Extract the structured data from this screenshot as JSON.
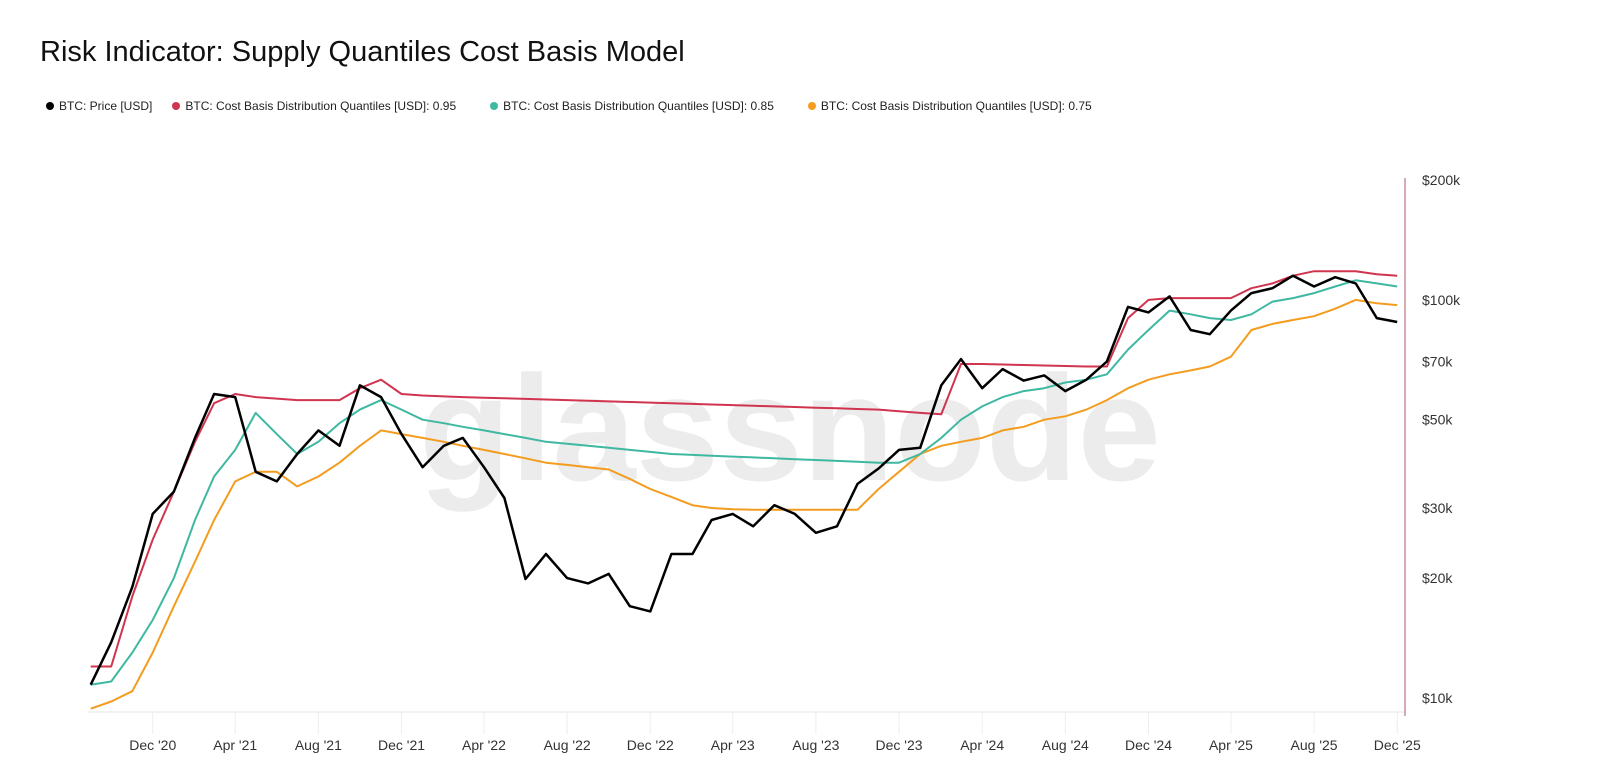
{
  "chart_data": {
    "type": "line",
    "title": "Risk Indicator: Supply Quantiles Cost Basis Model",
    "watermark": "glassnode",
    "y_scale": "log",
    "ylim": [
      10000,
      200000
    ],
    "y_ticks": [
      {
        "value": 200000,
        "label": "$200k"
      },
      {
        "value": 100000,
        "label": "$100k"
      },
      {
        "value": 70000,
        "label": "$70k"
      },
      {
        "value": 50000,
        "label": "$50k"
      },
      {
        "value": 30000,
        "label": "$30k"
      },
      {
        "value": 20000,
        "label": "$20k"
      },
      {
        "value": 10000,
        "label": "$10k"
      }
    ],
    "x_ticks": [
      {
        "date": "2020-12-01",
        "label": "Dec '20"
      },
      {
        "date": "2021-04-01",
        "label": "Apr '21"
      },
      {
        "date": "2021-08-01",
        "label": "Aug '21"
      },
      {
        "date": "2021-12-01",
        "label": "Dec '21"
      },
      {
        "date": "2022-04-01",
        "label": "Apr '22"
      },
      {
        "date": "2022-08-01",
        "label": "Aug '22"
      },
      {
        "date": "2022-12-01",
        "label": "Dec '22"
      },
      {
        "date": "2023-04-01",
        "label": "Apr '23"
      },
      {
        "date": "2023-08-01",
        "label": "Aug '23"
      },
      {
        "date": "2023-12-01",
        "label": "Dec '23"
      },
      {
        "date": "2024-04-01",
        "label": "Apr '24"
      },
      {
        "date": "2024-08-01",
        "label": "Aug '24"
      },
      {
        "date": "2024-12-01",
        "label": "Dec '24"
      },
      {
        "date": "2025-04-01",
        "label": "Apr '25"
      },
      {
        "date": "2025-08-01",
        "label": "Aug '25"
      },
      {
        "date": "2025-12-01",
        "label": "Dec '25"
      }
    ],
    "xlim": [
      "2020-08-28",
      "2025-12-08"
    ],
    "x": [
      "2020-09-01",
      "2020-10-01",
      "2020-11-01",
      "2020-12-01",
      "2021-01-01",
      "2021-02-01",
      "2021-03-01",
      "2021-04-01",
      "2021-05-01",
      "2021-06-01",
      "2021-07-01",
      "2021-08-01",
      "2021-09-01",
      "2021-10-01",
      "2021-11-01",
      "2021-12-01",
      "2022-01-01",
      "2022-02-01",
      "2022-03-01",
      "2022-04-01",
      "2022-05-01",
      "2022-06-01",
      "2022-07-01",
      "2022-08-01",
      "2022-09-01",
      "2022-10-01",
      "2022-11-01",
      "2022-12-01",
      "2023-01-01",
      "2023-02-01",
      "2023-03-01",
      "2023-04-01",
      "2023-05-01",
      "2023-06-01",
      "2023-07-01",
      "2023-08-01",
      "2023-09-01",
      "2023-10-01",
      "2023-11-01",
      "2023-12-01",
      "2024-01-01",
      "2024-02-01",
      "2024-03-01",
      "2024-04-01",
      "2024-05-01",
      "2024-06-01",
      "2024-07-01",
      "2024-08-01",
      "2024-09-01",
      "2024-10-01",
      "2024-11-01",
      "2024-12-01",
      "2025-01-01",
      "2025-02-01",
      "2025-03-01",
      "2025-04-01",
      "2025-05-01",
      "2025-06-01",
      "2025-07-01",
      "2025-08-01",
      "2025-09-01",
      "2025-10-01",
      "2025-11-01",
      "2025-12-01"
    ],
    "series": [
      {
        "name": "BTC: Price [USD]",
        "color": "#000000",
        "values": [
          10800,
          13800,
          19000,
          29000,
          33000,
          45000,
          58000,
          57000,
          37000,
          35000,
          41000,
          47000,
          43000,
          61000,
          57000,
          46000,
          38000,
          43000,
          45000,
          38000,
          31800,
          19900,
          23000,
          20000,
          19400,
          20500,
          17000,
          16500,
          23000,
          23000,
          28000,
          29000,
          27000,
          30500,
          29000,
          26000,
          27000,
          34500,
          37700,
          42000,
          42500,
          61000,
          71000,
          60000,
          67000,
          62700,
          64600,
          59000,
          63000,
          70000,
          96000,
          93000,
          102000,
          84000,
          82000,
          94000,
          104000,
          107000,
          115000,
          108000,
          114000,
          110000,
          90000,
          88000
        ]
      },
      {
        "name": "BTC: Cost Basis Distribution Quantiles [USD]: 0.95",
        "color": "#d0344f",
        "values": [
          12000,
          12000,
          18000,
          25000,
          33000,
          44000,
          55000,
          58000,
          57000,
          56500,
          56000,
          56000,
          56000,
          60000,
          63000,
          58000,
          57500,
          57200,
          57000,
          56800,
          56600,
          56400,
          56200,
          56000,
          55800,
          55600,
          55400,
          55200,
          55000,
          54800,
          54600,
          54400,
          54200,
          54000,
          53800,
          53600,
          53400,
          53200,
          53000,
          52500,
          52000,
          51600,
          69000,
          69000,
          68800,
          68600,
          68400,
          68200,
          68000,
          68000,
          90000,
          100000,
          101000,
          101000,
          101000,
          101000,
          107000,
          110000,
          115000,
          118000,
          118000,
          118000,
          116000,
          115000
        ]
      },
      {
        "name": "BTC: Cost Basis Distribution Quantiles [USD]: 0.85",
        "color": "#3fb8a2",
        "values": [
          10800,
          11000,
          13000,
          15700,
          20000,
          28000,
          36000,
          42000,
          52000,
          46000,
          41000,
          44000,
          49000,
          53000,
          56000,
          53000,
          50000,
          49000,
          48000,
          47000,
          46000,
          45000,
          44000,
          43500,
          43000,
          42500,
          42000,
          41500,
          41000,
          40800,
          40600,
          40400,
          40200,
          40000,
          39800,
          39600,
          39400,
          39200,
          39000,
          39000,
          41000,
          45000,
          50000,
          54000,
          57000,
          59000,
          60000,
          62000,
          63000,
          65000,
          75000,
          84000,
          94000,
          92000,
          90000,
          89000,
          92000,
          99000,
          101000,
          104000,
          108000,
          112000,
          110000,
          108000
        ]
      },
      {
        "name": "BTC: Cost Basis Distribution Quantiles [USD]: 0.75",
        "color": "#f39c1f",
        "values": [
          9400,
          9800,
          10400,
          13000,
          17000,
          22000,
          28000,
          35000,
          37000,
          37000,
          34000,
          36000,
          39000,
          43000,
          47000,
          46000,
          45000,
          44000,
          43000,
          42000,
          41000,
          40000,
          39000,
          38500,
          38000,
          37500,
          35500,
          33500,
          32000,
          30500,
          30000,
          29800,
          29700,
          29700,
          29700,
          29700,
          29700,
          29700,
          33500,
          37000,
          41000,
          43000,
          44000,
          45000,
          47000,
          48000,
          50000,
          51000,
          53000,
          56000,
          60000,
          63000,
          65000,
          66500,
          68000,
          72000,
          84000,
          87000,
          89000,
          91000,
          95000,
          100000,
          98000,
          97000
        ]
      }
    ]
  }
}
